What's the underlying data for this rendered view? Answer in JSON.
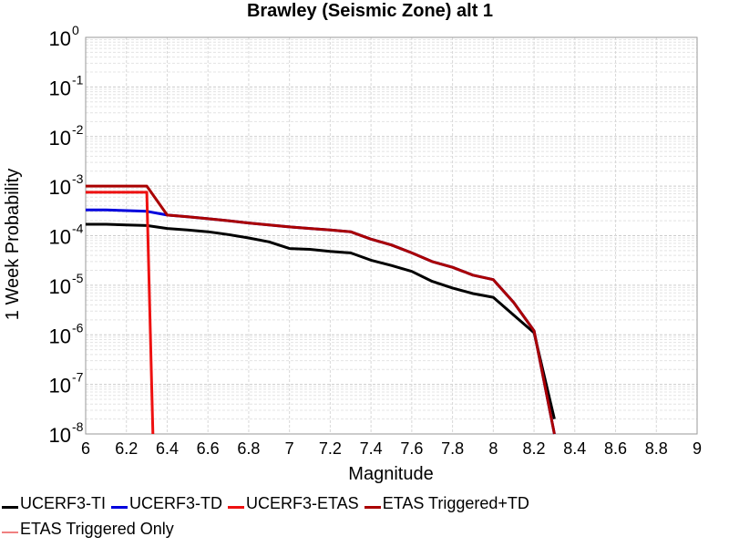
{
  "chart_data": {
    "type": "line",
    "title": "Brawley (Seismic Zone) alt 1",
    "xlabel": "Magnitude",
    "ylabel": "1 Week Probability",
    "xlim": [
      6,
      9
    ],
    "ylim": [
      1e-08,
      1
    ],
    "yscale": "log",
    "grid": true,
    "legend_position": "bottom",
    "x_ticks": [
      "6",
      "6.2",
      "6.4",
      "6.6",
      "6.8",
      "7",
      "7.2",
      "7.4",
      "7.6",
      "7.8",
      "8",
      "8.2",
      "8.4",
      "8.6",
      "8.8",
      "9"
    ],
    "y_ticks": [
      {
        "base": "10",
        "exp": "0"
      },
      {
        "base": "10",
        "exp": "-1"
      },
      {
        "base": "10",
        "exp": "-2"
      },
      {
        "base": "10",
        "exp": "-3"
      },
      {
        "base": "10",
        "exp": "-4"
      },
      {
        "base": "10",
        "exp": "-5"
      },
      {
        "base": "10",
        "exp": "-6"
      },
      {
        "base": "10",
        "exp": "-7"
      },
      {
        "base": "10",
        "exp": "-8"
      }
    ],
    "series": [
      {
        "name": "UCERF3-TI",
        "color": "#000000",
        "x": [
          6.0,
          6.1,
          6.2,
          6.3,
          6.4,
          6.5,
          6.6,
          6.7,
          6.8,
          6.9,
          7.0,
          7.1,
          7.2,
          7.3,
          7.4,
          7.5,
          7.6,
          7.7,
          7.8,
          7.9,
          8.0,
          8.1,
          8.2,
          8.3
        ],
        "y": [
          0.00017,
          0.00017,
          0.000165,
          0.00016,
          0.00014,
          0.00013,
          0.00012,
          0.000105,
          9e-05,
          7.5e-05,
          5.5e-05,
          5.3e-05,
          4.8e-05,
          4.5e-05,
          3.2e-05,
          2.5e-05,
          1.9e-05,
          1.2e-05,
          8.8e-06,
          6.8e-06,
          5.7e-06,
          2.5e-06,
          1.1e-06,
          2e-08
        ]
      },
      {
        "name": "UCERF3-TD",
        "color": "#0000dd",
        "x": [
          6.0,
          6.1,
          6.2,
          6.3,
          6.4,
          6.5,
          6.6,
          6.7,
          6.8,
          6.9,
          7.0,
          7.1,
          7.2,
          7.3,
          7.4,
          7.5,
          7.6,
          7.7,
          7.8,
          7.9,
          8.0,
          8.1,
          8.2,
          8.3
        ],
        "y": [
          0.00033,
          0.00033,
          0.00032,
          0.00031,
          0.00026,
          0.00024,
          0.00022,
          0.0002,
          0.00018,
          0.000165,
          0.00015,
          0.00014,
          0.00013,
          0.00012,
          8.5e-05,
          6.5e-05,
          4.5e-05,
          3e-05,
          2.3e-05,
          1.6e-05,
          1.3e-05,
          4.5e-06,
          1.2e-06,
          8e-09
        ]
      },
      {
        "name": "UCERF3-ETAS",
        "color": "#ee1111",
        "x": [
          6.0,
          6.1,
          6.2,
          6.3,
          6.33
        ],
        "y": [
          0.00075,
          0.00075,
          0.00075,
          0.00075,
          8e-09
        ]
      },
      {
        "name": "ETAS Triggered+TD",
        "color": "#aa0000",
        "x": [
          6.0,
          6.1,
          6.2,
          6.3,
          6.4,
          6.5,
          6.6,
          6.7,
          6.8,
          6.9,
          7.0,
          7.1,
          7.2,
          7.3,
          7.4,
          7.5,
          7.6,
          7.7,
          7.8,
          7.9,
          8.0,
          8.1,
          8.2,
          8.3
        ],
        "y": [
          0.001,
          0.001,
          0.001,
          0.001,
          0.00026,
          0.00024,
          0.00022,
          0.0002,
          0.00018,
          0.000165,
          0.00015,
          0.00014,
          0.00013,
          0.00012,
          8.5e-05,
          6.5e-05,
          4.5e-05,
          3e-05,
          2.3e-05,
          1.6e-05,
          1.3e-05,
          4.5e-06,
          1.2e-06,
          8e-09
        ]
      },
      {
        "name": "ETAS Triggered Only",
        "color": "#f08080",
        "x": [],
        "y": []
      }
    ]
  }
}
